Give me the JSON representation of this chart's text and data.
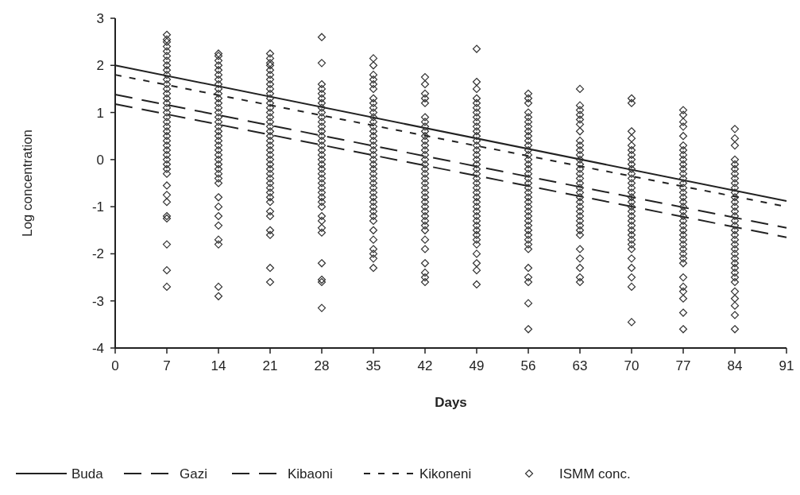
{
  "chart_data": {
    "type": "scatter",
    "xlabel": "Days",
    "ylabel": "Log concentration",
    "xlim": [
      0,
      91
    ],
    "ylim": [
      -4,
      3
    ],
    "xticks": [
      0,
      7,
      14,
      21,
      28,
      35,
      42,
      49,
      56,
      63,
      70,
      77,
      84,
      91
    ],
    "yticks": [
      -4,
      -3,
      -2,
      -1,
      0,
      1,
      2,
      3
    ],
    "grid": false,
    "legend": "bottom",
    "series": [
      {
        "name": "Buda",
        "type": "line",
        "color": "#222222",
        "line_style": "solid",
        "marker": "none",
        "x": [
          0,
          91
        ],
        "values": [
          2.0,
          -0.88
        ]
      },
      {
        "name": "Gazi",
        "type": "line",
        "color": "#222222",
        "line_style": "dashed",
        "marker": "none",
        "x": [
          0,
          91
        ],
        "values": [
          1.18,
          -1.65
        ]
      },
      {
        "name": "Kibaoni",
        "type": "line",
        "color": "#222222",
        "line_style": "dashed",
        "marker": "none",
        "x": [
          0,
          91
        ],
        "values": [
          1.38,
          -1.45
        ]
      },
      {
        "name": "Kikoneni",
        "type": "line",
        "color": "#222222",
        "line_style": "dotted",
        "marker": "none",
        "x": [
          0,
          91
        ],
        "values": [
          1.8,
          -1.0
        ]
      },
      {
        "name": "ISMM conc.",
        "color": "#333333",
        "marker": "diamond",
        "x": [
          7,
          7,
          7,
          7,
          7,
          7,
          7,
          7,
          7,
          7,
          7,
          7,
          7,
          7,
          7,
          7,
          7,
          7,
          7,
          7,
          7,
          7,
          7,
          7,
          7,
          7,
          7,
          7,
          7,
          7,
          7,
          7,
          7,
          7,
          7,
          7,
          7,
          7,
          7,
          14,
          14,
          14,
          14,
          14,
          14,
          14,
          14,
          14,
          14,
          14,
          14,
          14,
          14,
          14,
          14,
          14,
          14,
          14,
          14,
          14,
          14,
          14,
          14,
          14,
          14,
          14,
          14,
          14,
          14,
          14,
          14,
          14,
          14,
          14,
          14,
          14,
          21,
          21,
          21,
          21,
          21,
          21,
          21,
          21,
          21,
          21,
          21,
          21,
          21,
          21,
          21,
          21,
          21,
          21,
          21,
          21,
          21,
          21,
          21,
          21,
          21,
          21,
          21,
          21,
          21,
          21,
          21,
          21,
          21,
          21,
          21,
          21,
          21,
          21,
          21,
          28,
          28,
          28,
          28,
          28,
          28,
          28,
          28,
          28,
          28,
          28,
          28,
          28,
          28,
          28,
          28,
          28,
          28,
          28,
          28,
          28,
          28,
          28,
          28,
          28,
          28,
          28,
          28,
          28,
          28,
          28,
          28,
          28,
          28,
          28,
          28,
          28,
          35,
          35,
          35,
          35,
          35,
          35,
          35,
          35,
          35,
          35,
          35,
          35,
          35,
          35,
          35,
          35,
          35,
          35,
          35,
          35,
          35,
          35,
          35,
          35,
          35,
          35,
          35,
          35,
          35,
          35,
          35,
          35,
          35,
          35,
          35,
          35,
          35,
          35,
          35,
          42,
          42,
          42,
          42,
          42,
          42,
          42,
          42,
          42,
          42,
          42,
          42,
          42,
          42,
          42,
          42,
          42,
          42,
          42,
          42,
          42,
          42,
          42,
          42,
          42,
          42,
          42,
          42,
          42,
          42,
          42,
          42,
          42,
          42,
          42,
          42,
          49,
          49,
          49,
          49,
          49,
          49,
          49,
          49,
          49,
          49,
          49,
          49,
          49,
          49,
          49,
          49,
          49,
          49,
          49,
          49,
          49,
          49,
          49,
          49,
          49,
          49,
          49,
          49,
          49,
          49,
          49,
          49,
          49,
          49,
          49,
          49,
          49,
          49,
          49,
          56,
          56,
          56,
          56,
          56,
          56,
          56,
          56,
          56,
          56,
          56,
          56,
          56,
          56,
          56,
          56,
          56,
          56,
          56,
          56,
          56,
          56,
          56,
          56,
          56,
          56,
          56,
          56,
          56,
          56,
          56,
          56,
          56,
          56,
          56,
          56,
          56,
          56,
          63,
          63,
          63,
          63,
          63,
          63,
          63,
          63,
          63,
          63,
          63,
          63,
          63,
          63,
          63,
          63,
          63,
          63,
          63,
          63,
          63,
          63,
          63,
          63,
          63,
          63,
          63,
          63,
          63,
          63,
          63,
          63,
          63,
          70,
          70,
          70,
          70,
          70,
          70,
          70,
          70,
          70,
          70,
          70,
          70,
          70,
          70,
          70,
          70,
          70,
          70,
          70,
          70,
          70,
          70,
          70,
          70,
          70,
          70,
          70,
          70,
          70,
          70,
          70,
          70,
          77,
          77,
          77,
          77,
          77,
          77,
          77,
          77,
          77,
          77,
          77,
          77,
          77,
          77,
          77,
          77,
          77,
          77,
          77,
          77,
          77,
          77,
          77,
          77,
          77,
          77,
          77,
          77,
          77,
          77,
          77,
          77,
          77,
          77,
          77,
          77,
          77,
          84,
          84,
          84,
          84,
          84,
          84,
          84,
          84,
          84,
          84,
          84,
          84,
          84,
          84,
          84,
          84,
          84,
          84,
          84,
          84,
          84,
          84,
          84,
          84,
          84,
          84,
          84,
          84,
          84,
          84,
          84,
          84,
          84,
          84,
          84
        ],
        "values": [
          2.65,
          2.55,
          2.5,
          2.4,
          2.3,
          2.2,
          2.1,
          2.0,
          1.9,
          1.8,
          1.7,
          1.6,
          1.5,
          1.4,
          1.3,
          1.2,
          1.1,
          1.0,
          0.9,
          0.8,
          0.7,
          0.6,
          0.5,
          0.4,
          0.3,
          0.2,
          0.1,
          0,
          -0.1,
          -0.2,
          -0.3,
          -0.55,
          -0.75,
          -0.9,
          -1.2,
          -1.25,
          -1.8,
          -2.35,
          -2.7,
          2.25,
          2.2,
          2.1,
          2.0,
          1.9,
          1.8,
          1.7,
          1.6,
          1.5,
          1.4,
          1.3,
          1.2,
          1.1,
          1.0,
          0.9,
          0.8,
          0.7,
          0.6,
          0.5,
          0.4,
          0.3,
          0.2,
          0.1,
          0,
          -0.1,
          -0.2,
          -0.3,
          -0.4,
          -0.5,
          -0.8,
          -1.0,
          -1.2,
          -1.4,
          -1.7,
          -1.8,
          -2.7,
          -2.9,
          2.25,
          2.15,
          2.05,
          2.0,
          1.9,
          1.8,
          1.7,
          1.6,
          1.5,
          1.4,
          1.3,
          1.2,
          1.1,
          1.0,
          0.9,
          0.8,
          0.7,
          0.6,
          0.5,
          0.4,
          0.3,
          0.2,
          0.1,
          0,
          -0.1,
          -0.2,
          -0.3,
          -0.4,
          -0.5,
          -0.6,
          -0.7,
          -0.8,
          -0.9,
          -1.1,
          -1.2,
          -1.5,
          -1.6,
          -2.3,
          -2.6,
          2.6,
          2.05,
          1.6,
          1.5,
          1.4,
          1.3,
          1.2,
          1.1,
          1.0,
          0.9,
          0.8,
          0.7,
          0.6,
          0.5,
          0.4,
          0.3,
          0.2,
          0.1,
          0,
          -0.1,
          -0.2,
          -0.3,
          -0.4,
          -0.5,
          -0.6,
          -0.7,
          -0.8,
          -0.9,
          -1.0,
          -1.2,
          -1.3,
          -1.45,
          -1.55,
          -2.2,
          -2.55,
          -2.6,
          -3.15,
          2.15,
          2.0,
          1.8,
          1.7,
          1.6,
          1.5,
          1.3,
          1.2,
          1.1,
          1.0,
          0.9,
          0.8,
          0.7,
          0.6,
          0.5,
          0.4,
          0.3,
          0.2,
          0.1,
          0,
          -0.1,
          -0.2,
          -0.3,
          -0.4,
          -0.5,
          -0.6,
          -0.7,
          -0.8,
          -0.9,
          -1.0,
          -1.1,
          -1.2,
          -1.3,
          -1.5,
          -1.7,
          -1.9,
          -2.0,
          -2.1,
          -2.3,
          1.75,
          1.6,
          1.4,
          1.3,
          1.2,
          0.9,
          0.8,
          0.7,
          0.6,
          0.5,
          0.4,
          0.3,
          0.2,
          0.1,
          0,
          -0.1,
          -0.2,
          -0.3,
          -0.4,
          -0.5,
          -0.6,
          -0.7,
          -0.8,
          -0.9,
          -1.0,
          -1.1,
          -1.2,
          -1.3,
          -1.4,
          -1.5,
          -1.7,
          -1.9,
          -2.2,
          -2.4,
          -2.5,
          -2.6,
          2.35,
          1.65,
          1.5,
          1.3,
          1.2,
          1.1,
          1.0,
          0.9,
          0.8,
          0.7,
          0.6,
          0.5,
          0.4,
          0.3,
          0.2,
          0.1,
          0,
          -0.1,
          -0.2,
          -0.3,
          -0.4,
          -0.5,
          -0.6,
          -0.7,
          -0.8,
          -0.9,
          -1.0,
          -1.1,
          -1.2,
          -1.3,
          -1.4,
          -1.5,
          -1.6,
          -1.7,
          -1.8,
          -2.0,
          -2.2,
          -2.35,
          -2.65,
          1.4,
          1.3,
          1.2,
          1.0,
          0.9,
          0.8,
          0.7,
          0.6,
          0.5,
          0.4,
          0.3,
          0.2,
          0.1,
          0,
          -0.1,
          -0.2,
          -0.3,
          -0.4,
          -0.5,
          -0.6,
          -0.7,
          -0.8,
          -0.9,
          -1.0,
          -1.1,
          -1.2,
          -1.3,
          -1.4,
          -1.5,
          -1.6,
          -1.7,
          -1.8,
          -1.9,
          -2.3,
          -2.5,
          -2.6,
          -3.05,
          -3.6,
          1.5,
          1.15,
          1.05,
          0.95,
          0.85,
          0.75,
          0.6,
          0.4,
          0.3,
          0.2,
          0.1,
          0,
          -0.1,
          -0.2,
          -0.3,
          -0.4,
          -0.5,
          -0.6,
          -0.7,
          -0.8,
          -0.9,
          -1.0,
          -1.1,
          -1.2,
          -1.3,
          -1.4,
          -1.5,
          -1.6,
          -1.9,
          -2.1,
          -2.3,
          -2.5,
          -2.6,
          1.3,
          1.2,
          0.6,
          0.45,
          0.3,
          0.2,
          0.1,
          0,
          -0.1,
          -0.2,
          -0.3,
          -0.4,
          -0.5,
          -0.6,
          -0.7,
          -0.8,
          -0.9,
          -1.0,
          -1.1,
          -1.2,
          -1.3,
          -1.4,
          -1.5,
          -1.6,
          -1.7,
          -1.8,
          -1.9,
          -2.1,
          -2.3,
          -2.5,
          -2.7,
          -3.45,
          1.05,
          0.95,
          0.8,
          0.7,
          0.5,
          0.3,
          0.2,
          0.1,
          0,
          -0.1,
          -0.2,
          -0.3,
          -0.4,
          -0.5,
          -0.6,
          -0.7,
          -0.8,
          -0.9,
          -1.0,
          -1.1,
          -1.2,
          -1.3,
          -1.4,
          -1.5,
          -1.6,
          -1.7,
          -1.8,
          -1.9,
          -2.0,
          -2.1,
          -2.2,
          -2.5,
          -2.7,
          -2.8,
          -2.95,
          -3.25,
          -3.6,
          0.65,
          0.45,
          0.3,
          0,
          -0.1,
          -0.2,
          -0.3,
          -0.4,
          -0.5,
          -0.6,
          -0.7,
          -0.8,
          -0.9,
          -1.0,
          -1.1,
          -1.2,
          -1.3,
          -1.4,
          -1.5,
          -1.6,
          -1.7,
          -1.8,
          -1.9,
          -2.0,
          -2.1,
          -2.2,
          -2.3,
          -2.4,
          -2.5,
          -2.6,
          -2.8,
          -2.95,
          -3.1,
          -3.3,
          -3.6
        ]
      }
    ]
  }
}
